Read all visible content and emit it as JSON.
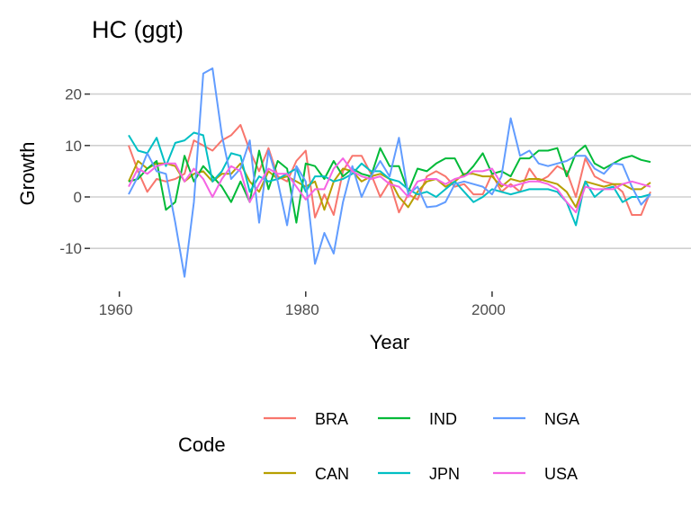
{
  "chart_data": {
    "type": "line",
    "title": "HC (ggt)",
    "xlabel": "Year",
    "ylabel": "Growth",
    "xlim": [
      1958,
      2020
    ],
    "ylim": [
      -17,
      27
    ],
    "xticks": [
      1960,
      1980,
      2000
    ],
    "yticks": [
      -10,
      0,
      10,
      20
    ],
    "grid": "horizontal",
    "legend": {
      "title": "Code",
      "placement": "bottom"
    },
    "x_start": 1961,
    "series": [
      {
        "name": "BRA",
        "color": "#F8766D",
        "values": [
          10,
          5,
          1,
          3.5,
          3,
          3.5,
          4.5,
          11,
          10,
          9,
          11,
          12,
          14,
          9,
          5,
          9.5,
          4,
          3,
          7,
          9,
          -4,
          0.5,
          -3.5,
          5,
          8,
          8,
          4.5,
          0,
          3,
          -3,
          0.5,
          -0.5,
          4,
          5,
          4,
          2,
          2.5,
          0.5,
          0.5,
          4.5,
          1,
          2.5,
          1,
          5.5,
          3,
          4,
          6,
          5,
          0,
          7.5,
          4,
          3,
          2.5,
          1,
          -3.5,
          -3.5,
          1
        ]
      },
      {
        "name": "CAN",
        "color": "#B79F00",
        "values": [
          3,
          7,
          5.5,
          6.5,
          6.5,
          6,
          3,
          4.5,
          5,
          3,
          4.5,
          4.5,
          6.5,
          3,
          1,
          5,
          3.5,
          4,
          3,
          2,
          3,
          -2.5,
          3,
          5.5,
          5,
          3,
          4,
          4.5,
          3.5,
          0,
          -2,
          1,
          3,
          3.5,
          2,
          3,
          4.5,
          4.5,
          4,
          4,
          2,
          3.5,
          3,
          3.5,
          3.5,
          3,
          2.5,
          1,
          -2,
          3,
          2.5,
          2,
          2.5,
          2.5,
          1.5,
          1.5,
          2.8
        ]
      },
      {
        "name": "IND",
        "color": "#00BA38",
        "values": [
          3,
          3.5,
          5.5,
          7,
          -2.5,
          -1,
          8,
          3,
          6,
          4,
          2,
          -1,
          3,
          -1,
          9,
          1.5,
          7,
          5.5,
          -5,
          6.5,
          6,
          3.5,
          7,
          4,
          5.5,
          4.5,
          4,
          9.5,
          6,
          6,
          1,
          5.5,
          5,
          6.5,
          7.5,
          7.5,
          4,
          6,
          8.5,
          4.5,
          5,
          4,
          7.5,
          7.5,
          9,
          9,
          9.5,
          4,
          8.5,
          10,
          6.5,
          5.5,
          6.5,
          7.5,
          8,
          7.2,
          6.8
        ]
      },
      {
        "name": "JPN",
        "color": "#00BFC4",
        "values": [
          12,
          9,
          8.5,
          11.5,
          6,
          10.5,
          11,
          12.5,
          12,
          3,
          5,
          8.5,
          8,
          1,
          4,
          3,
          3.5,
          4.5,
          5.5,
          1,
          4,
          4,
          3,
          3.5,
          4.5,
          6.5,
          5,
          5,
          3.5,
          3,
          1.5,
          0.5,
          1,
          0,
          1.5,
          3,
          1,
          -1,
          0,
          1.5,
          1,
          0.5,
          1,
          1.5,
          1.5,
          1.5,
          1,
          -1,
          -5.5,
          3,
          0,
          1.5,
          2,
          -1,
          0,
          0,
          0.5
        ]
      },
      {
        "name": "NGA",
        "color": "#619CFF",
        "values": [
          0.5,
          4,
          8.5,
          5,
          4.5,
          -5,
          -15.5,
          -1,
          24,
          25,
          12,
          3.5,
          5.5,
          11,
          -5,
          9,
          3,
          -5.5,
          6,
          3,
          -13,
          -7,
          -11,
          -1,
          6,
          0,
          4,
          7,
          4,
          11.5,
          0.5,
          2,
          -2,
          -1.8,
          -1,
          2.5,
          3,
          2.5,
          2,
          0.5,
          4,
          15.3,
          8,
          9,
          6.5,
          6,
          6.5,
          7,
          8,
          8,
          5.5,
          4.5,
          6.5,
          6.3,
          2,
          -1.5,
          0.5
        ]
      },
      {
        "name": "USA",
        "color": "#F564E3",
        "values": [
          2,
          5.5,
          4.5,
          6,
          6.5,
          6.5,
          3,
          5.5,
          3.5,
          0,
          3.5,
          6,
          5,
          -1,
          2.5,
          5.5,
          4.5,
          4.5,
          2,
          -0.5,
          1.5,
          1.5,
          5.5,
          7.5,
          5,
          4,
          3.5,
          4,
          2.5,
          2,
          0,
          3,
          3.5,
          3.5,
          2.5,
          3.5,
          4,
          5,
          5,
          5.5,
          2.5,
          2,
          2.5,
          3,
          3,
          2.5,
          1.5,
          -1,
          -3,
          2,
          1.5,
          1.5,
          1.5,
          2.5,
          3,
          2.5,
          2
        ]
      }
    ]
  }
}
